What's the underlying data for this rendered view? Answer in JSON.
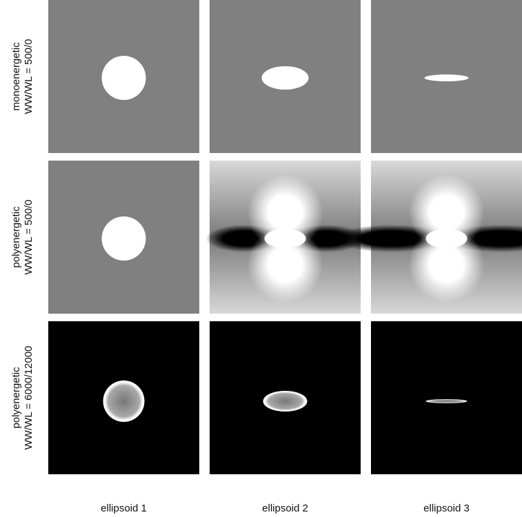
{
  "rows": [
    {
      "label": "monoenergetic",
      "window": "WW/WL = 500/0"
    },
    {
      "label": "polyenergetic",
      "window": "WW/WL = 500/0"
    },
    {
      "label": "polyenergetic",
      "window": "WW/WL = 6000/12000"
    }
  ],
  "columns": [
    "ellipsoid 1",
    "ellipsoid 2",
    "ellipsoid 3"
  ]
}
